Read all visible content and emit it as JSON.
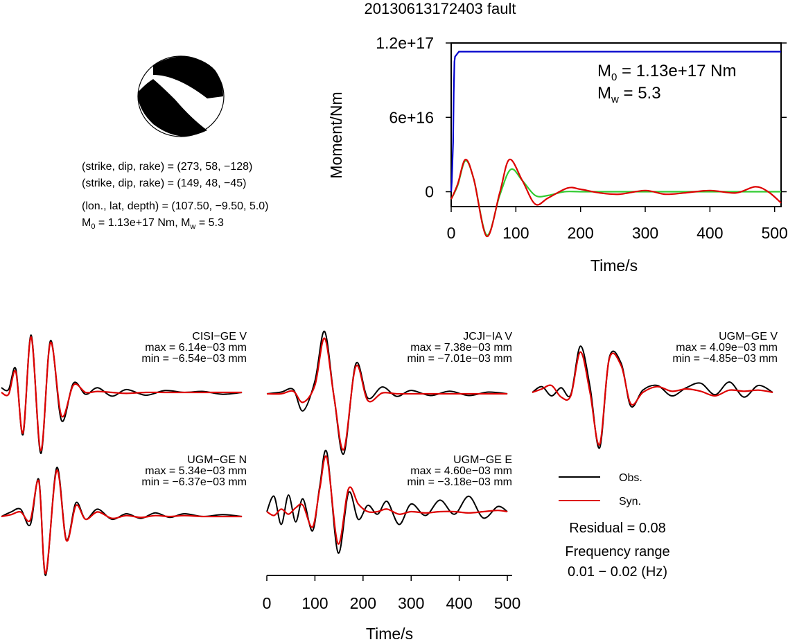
{
  "title": "20130613172403 fault",
  "info": {
    "np1": "(strike, dip, rake) = (273, 58, −128)",
    "np2": "(strike, dip, rake) = (149, 48, −45)",
    "location": "(lon., lat, depth) = (107.50, −9.50, 5.0)",
    "m0_prefix": "M",
    "m0_sub": "0",
    "m0_rest": " = 1.13e+17 Nm, M",
    "mw_sub": "w",
    "mw_rest": " = 5.3"
  },
  "colors": {
    "observed": "#000000",
    "synthetic": "#dd0000",
    "cumulative": "#0000cc",
    "rate": "#33cc33"
  },
  "chart_data": [
    {
      "type": "line",
      "name": "moment",
      "xlabel": "Time/s",
      "ylabel": "Moment/Nm",
      "xlim": [
        0,
        510
      ],
      "ylim": [
        -1.2e+16,
        1.2e+17
      ],
      "x_ticks": [
        0,
        100,
        200,
        300,
        400,
        500
      ],
      "x_tick_labels": [
        "0",
        "100",
        "200",
        "300",
        "400",
        "500"
      ],
      "y_ticks": [
        0,
        6e+16,
        1.2e+17
      ],
      "y_tick_labels": [
        "0",
        "6e+16",
        "1.2e+17"
      ],
      "annotation": {
        "m0_prefix": "M",
        "m0_sub": "0",
        "m0_rest": " = 1.13e+17 Nm",
        "mw_prefix": "M",
        "mw_sub": "w",
        "mw_rest": " = 5.3"
      },
      "series": [
        {
          "color": "#0000cc",
          "x": [
            0,
            1,
            3,
            4,
            5,
            6,
            9,
            12,
            510
          ],
          "y": [
            0,
            8000000000000000.0,
            4e+16,
            8e+16,
            1.05e+17,
            1.09e+17,
            1.11e+17,
            1.13e+17,
            1.13e+17
          ]
        },
        {
          "color": "#33cc33",
          "x": [
            0,
            10,
            22,
            35,
            55,
            75,
            92,
            110,
            130,
            150,
            175,
            200,
            250,
            300,
            510
          ],
          "y": [
            -6000000000000000.0,
            5000000000000000.0,
            2.5e+16,
            1e+16,
            -3.5e+16,
            -3000000000000000.0,
            1.8e+16,
            9000000000000000.0,
            -3000000000000000.0,
            -3000000000000000.0,
            0,
            0,
            0,
            0,
            0
          ]
        },
        {
          "color": "#dd0000",
          "x": [
            0,
            10,
            22,
            35,
            55,
            75,
            90,
            110,
            130,
            150,
            180,
            200,
            230,
            260,
            300,
            330,
            360,
            400,
            440,
            470,
            490,
            510
          ],
          "y": [
            -6000000000000000.0,
            6000000000000000.0,
            2.6e+16,
            1e+16,
            -3.6e+16,
            -1000000000000000.0,
            2.6e+16,
            9000000000000000.0,
            -1e+16,
            -5000000000000000.0,
            3000000000000000.0,
            2000000000000000.0,
            -1000000000000000.0,
            -2000000000000000.0,
            1000000000000000.0,
            -2000000000000000.0,
            -1000000000000000.0,
            1000000000000000.0,
            -1000000000000000.0,
            4000000000000000.0,
            0,
            -9000000000000000.0
          ]
        }
      ]
    },
    {
      "type": "line",
      "name": "waveform-fit",
      "xlabel": "Time/s",
      "xlim": [
        0,
        510
      ],
      "x_ticks": [
        0,
        100,
        200,
        300,
        400,
        500
      ],
      "x_tick_labels": [
        "0",
        "100",
        "200",
        "300",
        "400",
        "500"
      ],
      "legend": {
        "placement": "lower-right",
        "entries": [
          {
            "label": "Obs.",
            "color": "#000000"
          },
          {
            "label": "Syn.",
            "color": "#dd0000"
          }
        ]
      },
      "residual": "Residual = 0.08",
      "frequency_label": "Frequency range",
      "frequency_range": "0.01 − 0.02 (Hz)",
      "stations": [
        {
          "label": "CISI−GE V",
          "max": "max = 6.14e−03 mm",
          "min": "min = −6.54e−03 mm",
          "obs": {
            "x": [
              0,
              15,
              30,
              45,
              62,
              82,
              102,
              125,
              150,
              175,
              200,
              230,
              260,
              300,
              340,
              380,
              420,
              460,
              500
            ],
            "y": [
              0.5,
              0.3,
              2.5,
              -4.5,
              6.1,
              -6.5,
              5.5,
              -3.0,
              1.0,
              -0.2,
              0.5,
              -0.4,
              0.3,
              -0.3,
              0.2,
              0,
              0.1,
              -0.2,
              0
            ]
          },
          "syn": {
            "x": [
              0,
              15,
              30,
              45,
              62,
              82,
              102,
              125,
              150,
              175,
              200,
              230,
              260,
              300,
              340,
              380,
              420,
              460,
              500
            ],
            "y": [
              0,
              -0.2,
              2.2,
              -4.3,
              5.9,
              -6.2,
              5.3,
              -2.5,
              0.8,
              0,
              0.1,
              0,
              -0.1,
              0,
              0,
              0,
              0,
              0,
              0
            ]
          }
        },
        {
          "label": "JCJI−IA V",
          "max": "max = 7.38e−03 mm",
          "min": "min = −7.01e−03 mm",
          "obs": {
            "x": [
              0,
              30,
              55,
              75,
              100,
              120,
              140,
              160,
              185,
              210,
              240,
              270,
              300,
              340,
              380,
              420,
              460,
              500
            ],
            "y": [
              0,
              0.2,
              0.5,
              -2.0,
              1.5,
              7.3,
              -0.5,
              -7.0,
              3.5,
              -0.5,
              0.8,
              -0.3,
              0.4,
              -0.2,
              0.3,
              -0.2,
              0.2,
              0
            ]
          },
          "syn": {
            "x": [
              0,
              30,
              55,
              75,
              100,
              120,
              140,
              160,
              185,
              210,
              240,
              270,
              300,
              340,
              380,
              420,
              460,
              500
            ],
            "y": [
              0,
              0,
              0.3,
              -1.0,
              1.0,
              6.5,
              -0.5,
              -6.5,
              3.2,
              -0.8,
              0.1,
              0,
              0,
              0,
              0,
              0,
              0,
              0
            ]
          }
        },
        {
          "label": "UGM−GE V",
          "max": "max = 4.09e−03 mm",
          "min": "min = −4.85e−03 mm",
          "obs": {
            "x": [
              0,
              20,
              40,
              60,
              80,
              100,
              120,
              140,
              160,
              185,
              205,
              230,
              260,
              290,
              320,
              350,
              380,
              410,
              440,
              470,
              500
            ],
            "y": [
              0,
              0.5,
              -0.3,
              0.4,
              -0.2,
              4.0,
              0.5,
              -4.8,
              3.0,
              2.5,
              -1.2,
              0.2,
              0.6,
              -0.3,
              0.4,
              0.8,
              -0.2,
              0.9,
              -0.4,
              0.6,
              0
            ]
          },
          "syn": {
            "x": [
              0,
              20,
              40,
              60,
              80,
              100,
              120,
              140,
              160,
              185,
              205,
              230,
              260,
              290,
              320,
              350,
              380,
              410,
              440,
              470,
              500
            ],
            "y": [
              0,
              0.3,
              0.6,
              -0.4,
              -0.3,
              3.5,
              0,
              -4.5,
              2.9,
              2.3,
              -1.0,
              0,
              0.5,
              0.1,
              0.3,
              0.1,
              -0.3,
              0.2,
              0.1,
              0.2,
              0
            ]
          }
        },
        {
          "label": "UGM−GE N",
          "max": "max = 5.34e−03 mm",
          "min": "min = −6.37e−03 mm",
          "obs": {
            "x": [
              0,
              20,
              40,
              60,
              78,
              92,
              115,
              135,
              155,
              175,
              200,
              230,
              260,
              290,
              320,
              350,
              380,
              420,
              460,
              500
            ],
            "y": [
              0,
              0.5,
              0.8,
              -0.9,
              4.0,
              -6.4,
              5.3,
              -2.5,
              1.5,
              -0.3,
              0.8,
              -0.3,
              0.3,
              -0.2,
              0.4,
              -0.1,
              0.3,
              0,
              0.2,
              0
            ]
          },
          "syn": {
            "x": [
              0,
              20,
              40,
              60,
              78,
              92,
              115,
              135,
              155,
              175,
              200,
              230,
              260,
              290,
              320,
              350,
              380,
              420,
              460,
              500
            ],
            "y": [
              0,
              0.2,
              0.5,
              -0.4,
              3.8,
              -6.2,
              5.0,
              -2.6,
              1.2,
              -0.3,
              0.5,
              -0.2,
              0.1,
              -0.1,
              0.1,
              0,
              0.1,
              0,
              0,
              0
            ]
          }
        },
        {
          "label": "UGM−GE E",
          "max": "max = 4.60e−03 mm",
          "min": "min = −3.18e−03 mm",
          "obs": {
            "x": [
              0,
              15,
              30,
              45,
              60,
              75,
              95,
              110,
              125,
              148,
              170,
              190,
              210,
              230,
              250,
              275,
              300,
              330,
              360,
              390,
              420,
              450,
              480,
              500
            ],
            "y": [
              0,
              1.2,
              -1.0,
              1.3,
              -0.8,
              1.0,
              -1.5,
              2.0,
              4.6,
              -3.2,
              1.5,
              -0.6,
              0.5,
              -0.2,
              0.8,
              -1.0,
              0.6,
              -0.3,
              0.9,
              -0.2,
              1.2,
              -0.5,
              0.4,
              0
            ]
          },
          "syn": {
            "x": [
              0,
              15,
              30,
              45,
              60,
              75,
              95,
              110,
              125,
              148,
              170,
              190,
              210,
              230,
              250,
              275,
              300,
              330,
              360,
              390,
              420,
              450,
              480,
              500
            ],
            "y": [
              0,
              -0.3,
              0.2,
              -0.2,
              0.3,
              0.5,
              -1.2,
              1.8,
              4.2,
              -2.5,
              1.8,
              0.6,
              0,
              0,
              0.2,
              -0.2,
              0,
              -0.1,
              0,
              0,
              -0.1,
              0,
              0.1,
              0
            ]
          }
        }
      ]
    }
  ]
}
